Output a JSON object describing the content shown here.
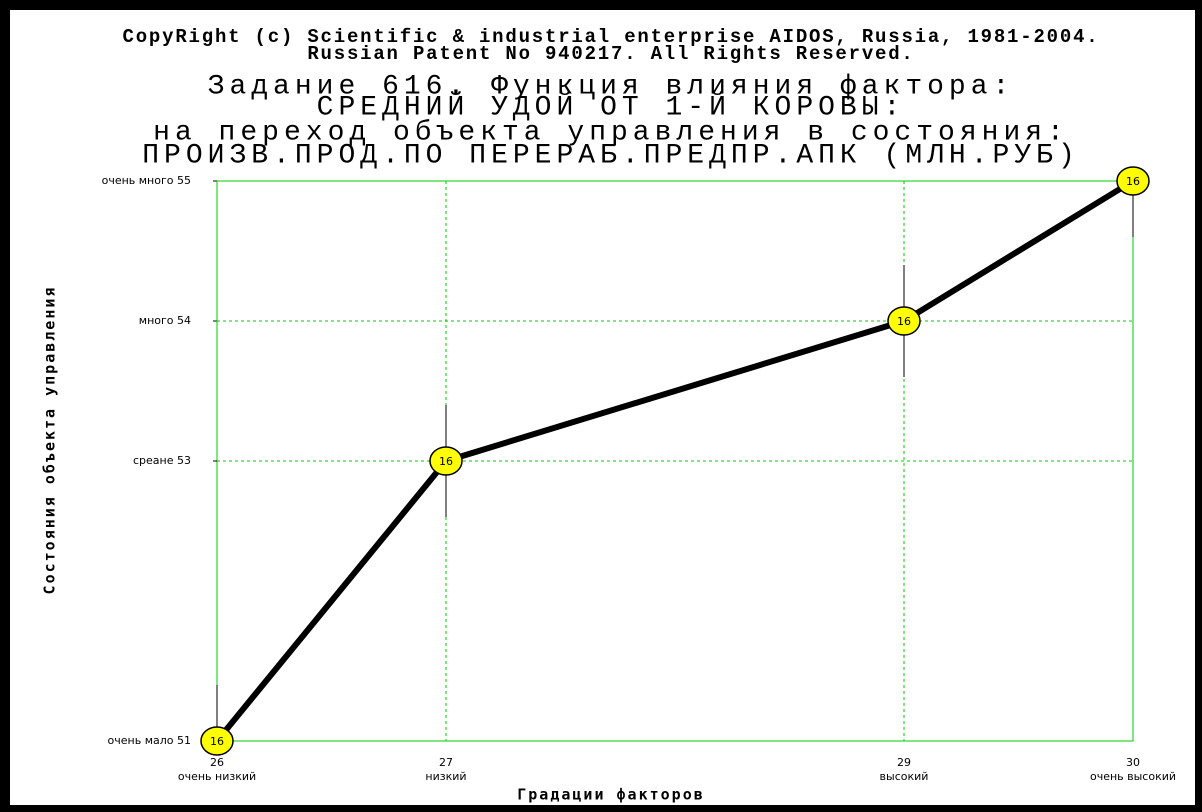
{
  "chart_data": {
    "type": "line",
    "copyright": [
      "CopyRight (c) Scientific & industrial enterprise AIDOS, Russia, 1981-2004.",
      "Russian Patent No 940217. All Rights Reserved."
    ],
    "title": [
      "Задание 616. Функция влияния фактора:",
      "СРЕДНИЙ УДОЙ ОТ 1-Й КОРОВЫ:",
      "на переход объекта управления в состояния:",
      "ПРОИЗВ.ПРОД.ПО ПЕРЕРАБ.ПРЕДПР.АПК (МЛН.РУБ)"
    ],
    "xlabel": "Градации факторов",
    "ylabel": "Состояния объекта управления",
    "x": [
      26,
      27,
      29,
      30
    ],
    "y": [
      51,
      53,
      54,
      55
    ],
    "errors": [
      0.4,
      0.4,
      0.4,
      0.4
    ],
    "point_labels": [
      "16",
      "16",
      "16",
      "16"
    ],
    "xlim": [
      26,
      30
    ],
    "ylim": [
      51,
      55
    ],
    "xticks": [
      26,
      27,
      29,
      30
    ],
    "xtick_names": [
      "очень низкий",
      "низкий",
      "высокий",
      "очень высокий"
    ],
    "yticks": [
      {
        "value": 51,
        "label": "очень мало 51"
      },
      {
        "value": 53,
        "label": "среане 53"
      },
      {
        "value": 54,
        "label": "много 54"
      },
      {
        "value": 55,
        "label": "очень много 55"
      }
    ],
    "grid": true,
    "line_color": "#000000",
    "marker_color": "#ffff00",
    "grid_color": "#00cc00"
  }
}
